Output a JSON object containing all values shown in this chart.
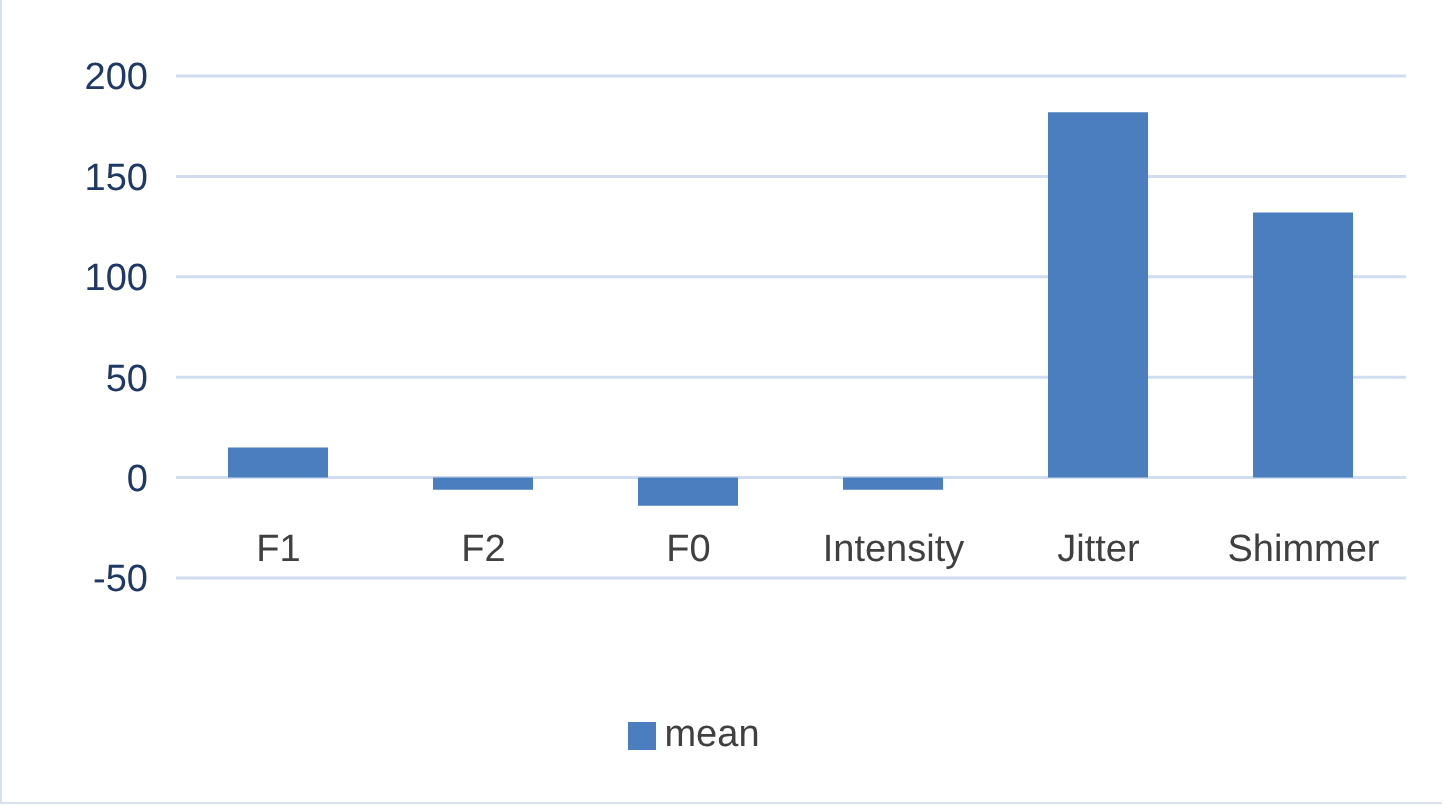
{
  "chart_data": {
    "type": "bar",
    "categories": [
      "F1",
      "F2",
      "F0",
      "Intensity",
      "Jitter",
      "Shimmer"
    ],
    "series": [
      {
        "name": "mean",
        "color": "#4a7ebf",
        "values": [
          15,
          -6,
          -14,
          -6,
          182,
          132
        ]
      }
    ],
    "ylim": [
      -50,
      200
    ],
    "yticks": [
      -50,
      0,
      50,
      100,
      150,
      200
    ],
    "grid": "y",
    "legend": "bottom"
  }
}
